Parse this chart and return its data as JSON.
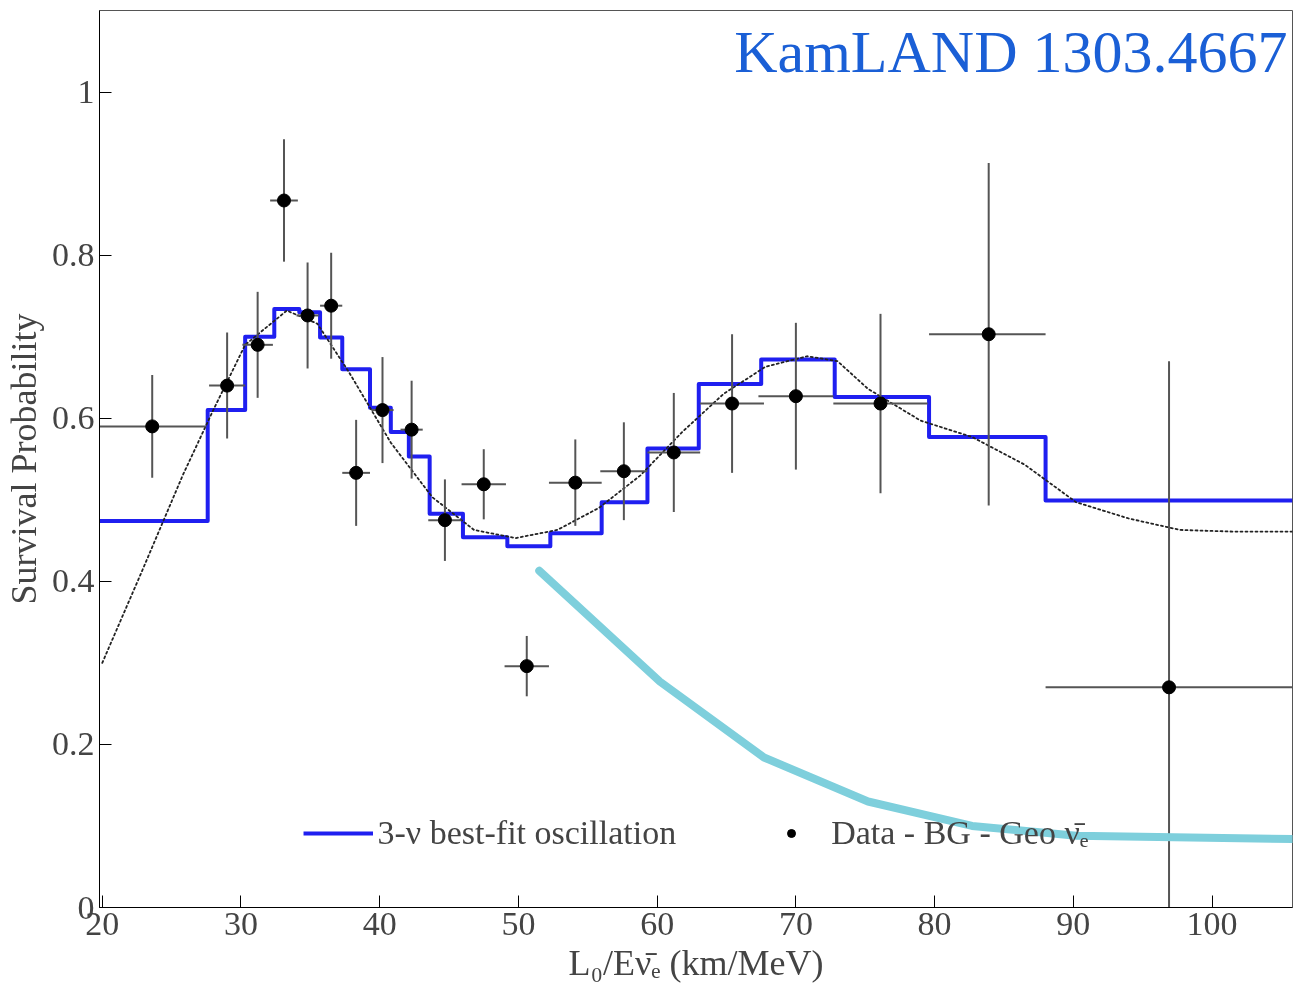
{
  "chart_data": {
    "type": "scatter",
    "xlabel": "L₀/Eν̄ₑ (km/MeV)",
    "ylabel": "Survival Probability",
    "annotations": [
      "KamLAND 1303.4667"
    ],
    "xlim": [
      19.8,
      105.8
    ],
    "xticks": [
      20,
      30,
      40,
      50,
      60,
      70,
      80,
      90,
      100
    ],
    "ylim": [
      0,
      1.1
    ],
    "yticks": [
      0,
      0.2,
      0.4,
      0.6,
      0.8,
      1
    ],
    "grid": false,
    "legend": "bottom",
    "series": [
      {
        "name": "3-ν best-fit oscillation",
        "type": "step",
        "color": "#1f1ff0",
        "x": [
          19.8,
          27.6,
          30.3,
          32.4,
          34.2,
          35.7,
          37.3,
          39.3,
          40.8,
          42.1,
          43.6,
          46.0,
          49.2,
          52.3,
          56.0,
          59.3,
          63.0,
          67.5,
          72.8,
          79.6,
          88.0,
          105.8
        ],
        "values": [
          0.474,
          0.61,
          0.7,
          0.734,
          0.73,
          0.699,
          0.66,
          0.613,
          0.583,
          0.553,
          0.483,
          0.454,
          0.443,
          0.459,
          0.497,
          0.563,
          0.642,
          0.672,
          0.626,
          0.577,
          0.499,
          0.499
        ]
      },
      {
        "type": "line",
        "line_style": "dotted",
        "color": "#222222",
        "x": [
          20,
          22.8,
          25.8,
          28,
          30.3,
          33.3,
          35.5,
          37.8,
          40.8,
          43.8,
          46.8,
          49.8,
          52.8,
          55.8,
          58.8,
          61.8,
          64.8,
          67.8,
          70.8,
          73,
          75.2,
          79,
          82.7,
          86.5,
          90.2,
          94,
          97.7,
          101.5,
          105.8
        ],
        "values": [
          0.3,
          0.41,
          0.53,
          0.61,
          0.69,
          0.732,
          0.716,
          0.656,
          0.57,
          0.503,
          0.463,
          0.453,
          0.463,
          0.49,
          0.53,
          0.583,
          0.63,
          0.663,
          0.676,
          0.67,
          0.636,
          0.597,
          0.577,
          0.543,
          0.497,
          0.477,
          0.463,
          0.461,
          0.461
        ]
      },
      {
        "name": "Data - BG - Geo ν̄ₑ",
        "marker": "circle",
        "color": "#000000",
        "x": [
          23.6,
          29.0,
          31.2,
          33.1,
          34.8,
          36.5,
          38.3,
          40.2,
          42.3,
          44.7,
          47.5,
          50.6,
          54.1,
          57.6,
          61.2,
          65.4,
          70.0,
          76.1,
          83.9,
          96.9
        ],
        "values": [
          0.59,
          0.64,
          0.69,
          0.867,
          0.726,
          0.738,
          0.533,
          0.61,
          0.586,
          0.475,
          0.519,
          0.296,
          0.521,
          0.535,
          0.558,
          0.618,
          0.627,
          0.618,
          0.703,
          0.27
        ],
        "errors": [
          0.063,
          0.065,
          0.065,
          0.075,
          0.065,
          0.065,
          0.065,
          0.065,
          0.06,
          0.05,
          0.043,
          0.037,
          0.053,
          0.06,
          0.073,
          0.085,
          0.09,
          0.11,
          0.21,
          [
            0.0,
            0.67
          ]
        ],
        "xerrors": [
          [
            19.8,
            27.5
          ],
          1.3,
          1.1,
          1.0,
          0.8,
          0.8,
          1.0,
          0.8,
          0.8,
          1.2,
          1.6,
          1.6,
          1.9,
          1.7,
          1.9,
          2.3,
          2.7,
          3.4,
          [
            79.6,
            88.0
          ],
          [
            88.0,
            105.8
          ]
        ]
      },
      {
        "type": "line",
        "line_style": "solid",
        "color": "#7ecfdc",
        "x": [
          51.5,
          60.2,
          67.7,
          75.2,
          82.7,
          90.2,
          105.8
        ],
        "values": [
          0.413,
          0.277,
          0.184,
          0.13,
          0.1,
          0.088,
          0.084
        ]
      }
    ]
  }
}
